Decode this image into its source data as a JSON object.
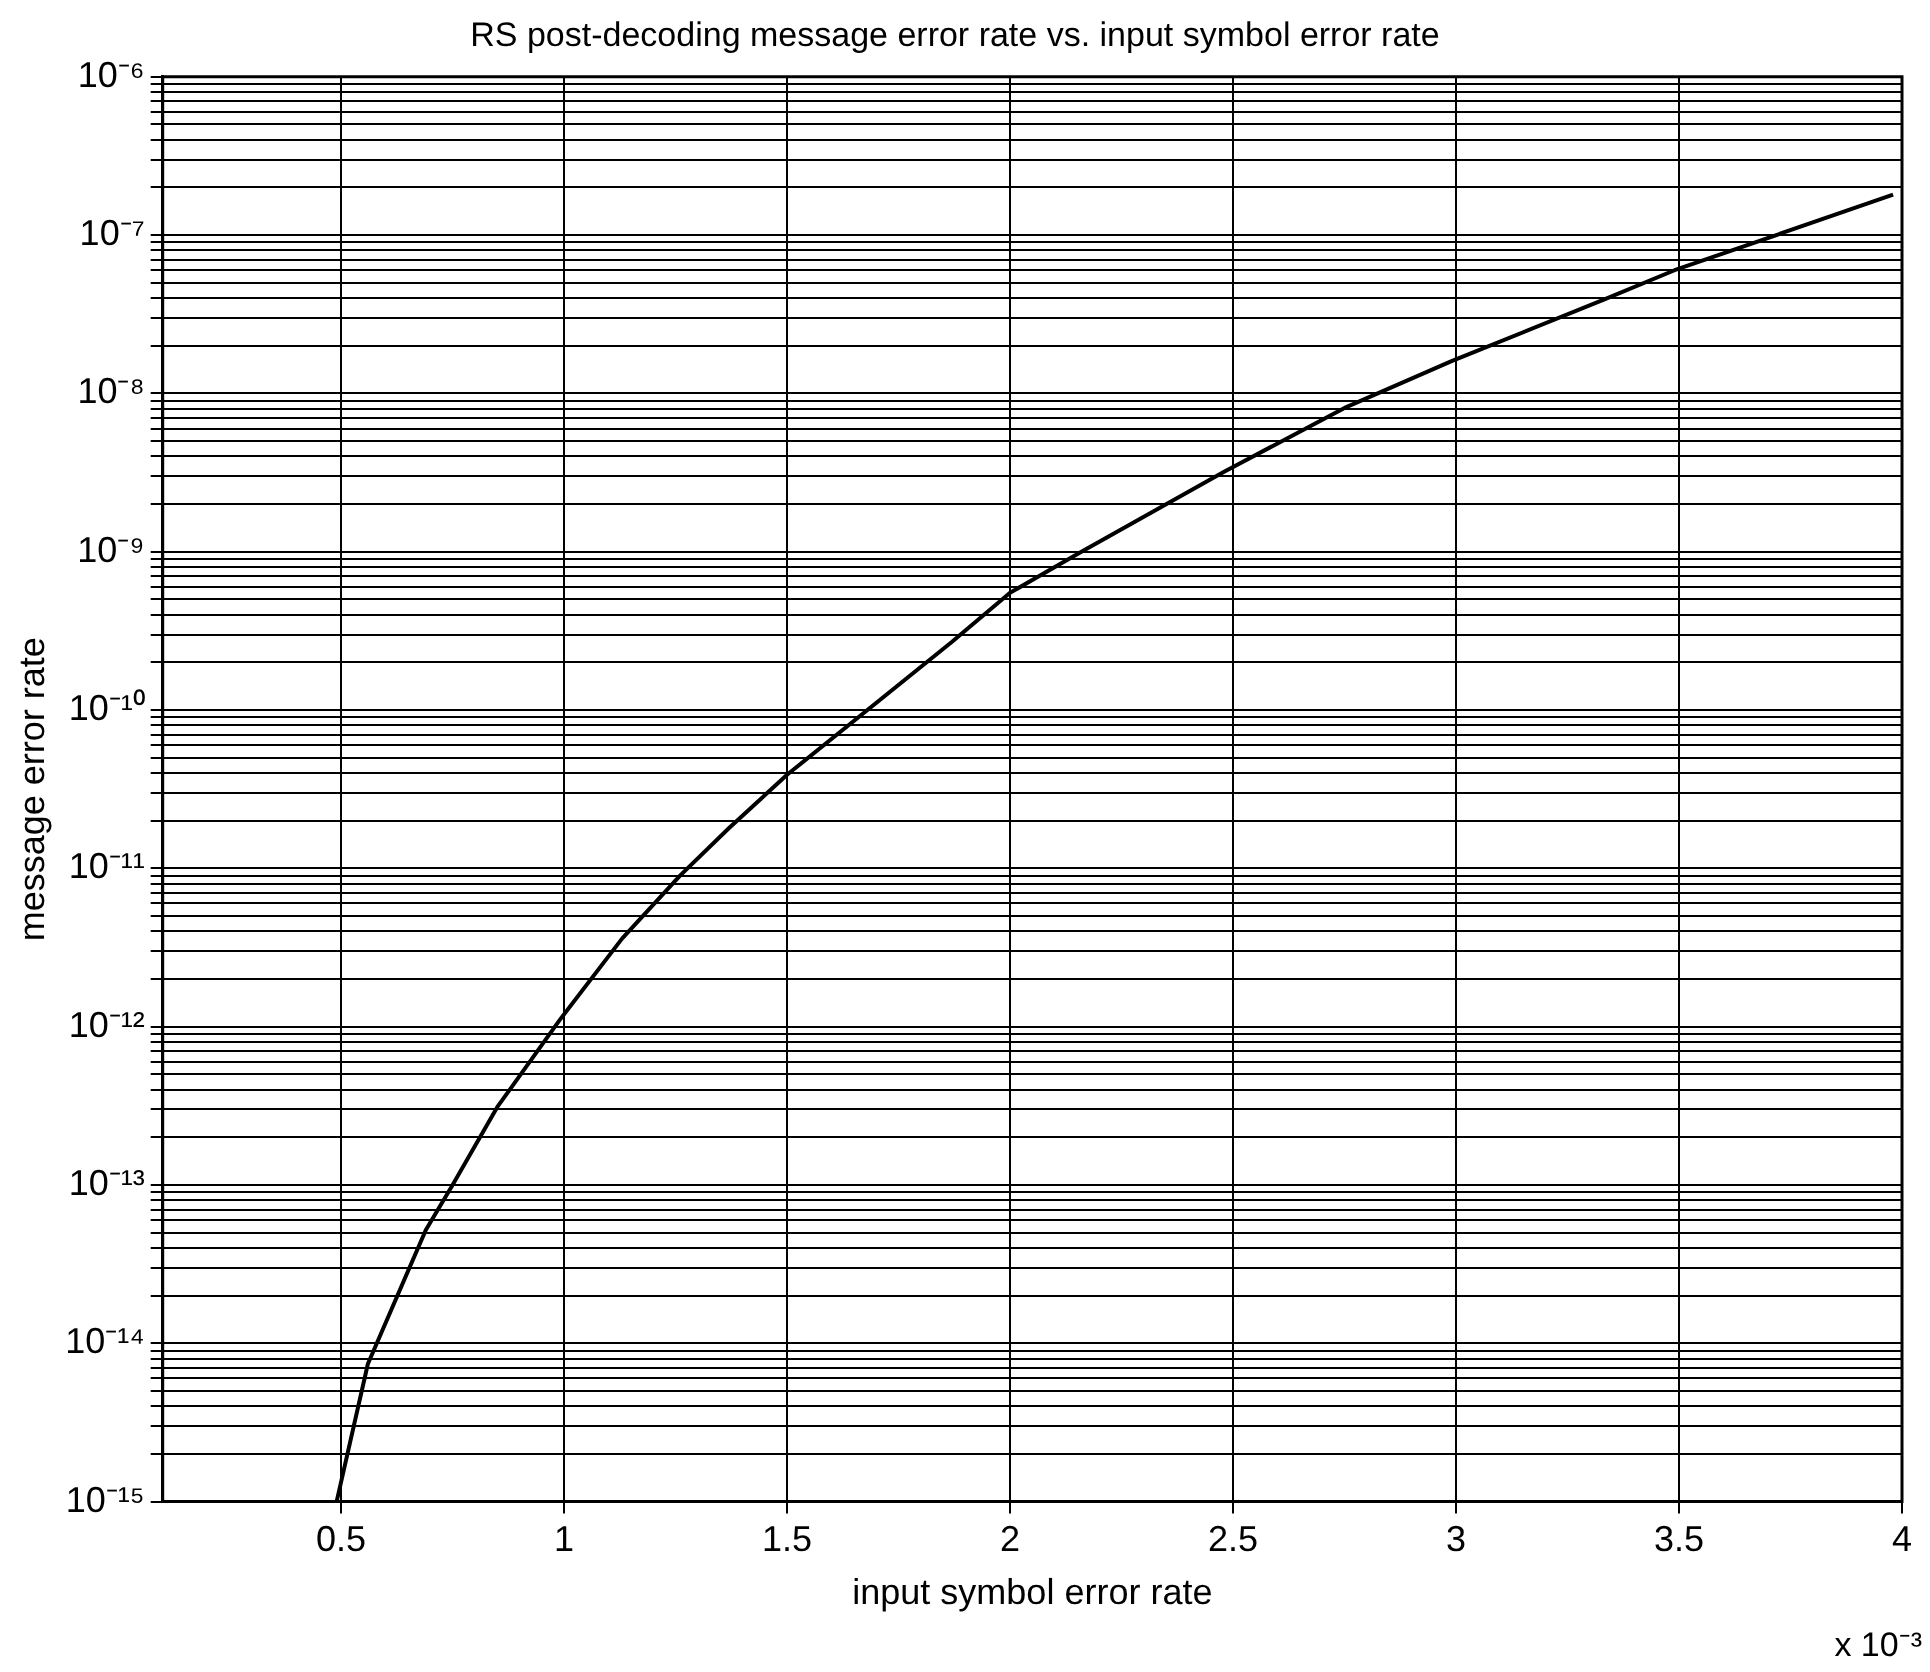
{
  "chart_data": {
    "type": "line",
    "title": "RS post-decoding message error rate vs. input symbol error rate",
    "xlabel": "input symbol error rate",
    "ylabel": "message error rate",
    "annotations": [
      "x 10⁻³"
    ],
    "log": "y",
    "grid": true,
    "line_style": "solid",
    "xlim": [
      0.1,
      4
    ],
    "xticks": [
      0.5,
      1,
      1.5,
      2,
      2.5,
      3,
      3.5,
      4
    ],
    "ylim": [
      1e-15,
      1e-06
    ],
    "yticks": [
      {
        "value": 1e-15,
        "label": "10⁻¹⁵"
      },
      {
        "value": 2e-15,
        "label": null
      },
      {
        "value": 3e-15,
        "label": null
      },
      {
        "value": 4e-15,
        "label": null
      },
      {
        "value": 5e-15,
        "label": null
      },
      {
        "value": 6e-15,
        "label": null
      },
      {
        "value": 7e-15,
        "label": null
      },
      {
        "value": 8e-15,
        "label": null
      },
      {
        "value": 9e-15,
        "label": null
      },
      {
        "value": 1e-14,
        "label": "10⁻¹⁴"
      },
      {
        "value": 2e-14,
        "label": null
      },
      {
        "value": 3e-14,
        "label": null
      },
      {
        "value": 4e-14,
        "label": null
      },
      {
        "value": 5e-14,
        "label": null
      },
      {
        "value": 6e-14,
        "label": null
      },
      {
        "value": 7e-14,
        "label": null
      },
      {
        "value": 8e-14,
        "label": null
      },
      {
        "value": 9e-14,
        "label": null
      },
      {
        "value": 1e-13,
        "label": "10⁻¹³"
      },
      {
        "value": 2e-13,
        "label": null
      },
      {
        "value": 3e-13,
        "label": null
      },
      {
        "value": 4e-13,
        "label": null
      },
      {
        "value": 5e-13,
        "label": null
      },
      {
        "value": 6e-13,
        "label": null
      },
      {
        "value": 7e-13,
        "label": null
      },
      {
        "value": 8e-13,
        "label": null
      },
      {
        "value": 9e-13,
        "label": null
      },
      {
        "value": 1e-12,
        "label": "10⁻¹²"
      },
      {
        "value": 2e-12,
        "label": null
      },
      {
        "value": 3e-12,
        "label": null
      },
      {
        "value": 4e-12,
        "label": null
      },
      {
        "value": 5e-12,
        "label": null
      },
      {
        "value": 6e-12,
        "label": null
      },
      {
        "value": 7e-12,
        "label": null
      },
      {
        "value": 8e-12,
        "label": null
      },
      {
        "value": 9e-12,
        "label": null
      },
      {
        "value": 1e-11,
        "label": "10⁻¹¹"
      },
      {
        "value": 2e-11,
        "label": null
      },
      {
        "value": 3e-11,
        "label": null
      },
      {
        "value": 4e-11,
        "label": null
      },
      {
        "value": 5e-11,
        "label": null
      },
      {
        "value": 6e-11,
        "label": null
      },
      {
        "value": 7e-11,
        "label": null
      },
      {
        "value": 8e-11,
        "label": null
      },
      {
        "value": 9e-11,
        "label": null
      },
      {
        "value": 1e-10,
        "label": "10⁻¹⁰"
      },
      {
        "value": 2e-10,
        "label": null
      },
      {
        "value": 3e-10,
        "label": null
      },
      {
        "value": 4e-10,
        "label": null
      },
      {
        "value": 5e-10,
        "label": null
      },
      {
        "value": 6e-10,
        "label": null
      },
      {
        "value": 7e-10,
        "label": null
      },
      {
        "value": 8e-10,
        "label": null
      },
      {
        "value": 9e-10,
        "label": null
      },
      {
        "value": 1e-09,
        "label": "10⁻⁹"
      },
      {
        "value": 2e-09,
        "label": null
      },
      {
        "value": 3e-09,
        "label": null
      },
      {
        "value": 4e-09,
        "label": null
      },
      {
        "value": 5e-09,
        "label": null
      },
      {
        "value": 6e-09,
        "label": null
      },
      {
        "value": 7e-09,
        "label": null
      },
      {
        "value": 8e-09,
        "label": null
      },
      {
        "value": 9e-09,
        "label": null
      },
      {
        "value": 1e-08,
        "label": "10⁻⁸"
      },
      {
        "value": 2e-08,
        "label": null
      },
      {
        "value": 3e-08,
        "label": null
      },
      {
        "value": 4e-08,
        "label": null
      },
      {
        "value": 5e-08,
        "label": null
      },
      {
        "value": 6e-08,
        "label": null
      },
      {
        "value": 7e-08,
        "label": null
      },
      {
        "value": 8e-08,
        "label": null
      },
      {
        "value": 9e-08,
        "label": null
      },
      {
        "value": 1e-07,
        "label": "10⁻⁷"
      },
      {
        "value": 2e-07,
        "label": null
      },
      {
        "value": 3e-07,
        "label": null
      },
      {
        "value": 4e-07,
        "label": null
      },
      {
        "value": 5e-07,
        "label": null
      },
      {
        "value": 6e-07,
        "label": null
      },
      {
        "value": 7e-07,
        "label": null
      },
      {
        "value": 8e-07,
        "label": null
      },
      {
        "value": 9e-07,
        "label": null
      },
      {
        "value": 1e-06,
        "label": "10⁻⁶"
      }
    ],
    "series": [
      {
        "color": "#000000",
        "x": [
          0.49,
          0.56,
          0.69,
          0.75,
          0.85,
          0.99,
          1.13,
          1.26,
          1.37,
          1.5,
          1.87,
          2.0,
          2.16,
          2.48,
          2.75,
          2.99,
          3.33,
          3.49,
          3.98
        ],
        "values": [
          1e-15,
          7.4e-15,
          5.2e-14,
          1e-13,
          3.1e-13,
          1.1e-12,
          3.6e-12,
          9e-12,
          1.8e-11,
          3.9e-11,
          2.7e-10,
          5.5e-10,
          1e-09,
          3.2e-09,
          8.1e-09,
          1.6e-08,
          3.9e-08,
          6e-08,
          1.8e-07
        ]
      }
    ]
  }
}
